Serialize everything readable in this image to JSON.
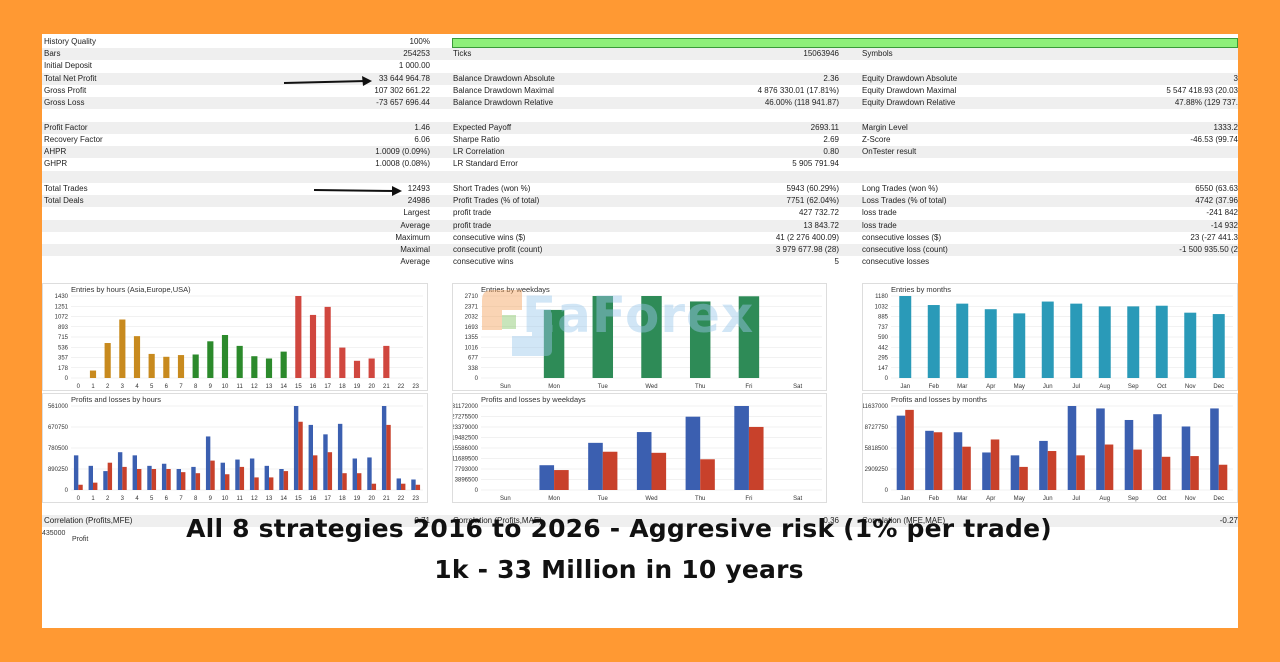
{
  "stats": {
    "history_quality_label": "History Quality",
    "history_quality_value": "100%",
    "rows": [
      {
        "l1": "Bars",
        "v1": "254253",
        "l2": "Ticks",
        "v2": "15063946",
        "l3": "Symbols",
        "v3": ""
      },
      {
        "l1": "Initial Deposit",
        "v1": "1 000.00",
        "l2": "",
        "v2": "",
        "l3": "",
        "v3": ""
      },
      {
        "l1": "Total Net Profit",
        "v1": "33 644 964.78",
        "l2": "Balance Drawdown Absolute",
        "v2": "2.36",
        "l3": "Equity Drawdown Absolute",
        "v3": "3"
      },
      {
        "l1": "Gross Profit",
        "v1": "107 302 661.22",
        "l2": "Balance Drawdown Maximal",
        "v2": "4 876 330.01 (17.81%)",
        "l3": "Equity Drawdown Maximal",
        "v3": "5 547 418.93 (20.03"
      },
      {
        "l1": "Gross Loss",
        "v1": "-73 657 696.44",
        "l2": "Balance Drawdown Relative",
        "v2": "46.00% (118 941.87)",
        "l3": "Equity Drawdown Relative",
        "v3": "47.88% (129 737."
      },
      {
        "l1": "",
        "v1": "",
        "l2": "",
        "v2": "",
        "l3": "",
        "v3": ""
      },
      {
        "l1": "Profit Factor",
        "v1": "1.46",
        "l2": "Expected Payoff",
        "v2": "2693.11",
        "l3": "Margin Level",
        "v3": "1333.2"
      },
      {
        "l1": "Recovery Factor",
        "v1": "6.06",
        "l2": "Sharpe Ratio",
        "v2": "2.69",
        "l3": "Z-Score",
        "v3": "-46.53 (99.74"
      },
      {
        "l1": "AHPR",
        "v1": "1.0009 (0.09%)",
        "l2": "LR Correlation",
        "v2": "0.80",
        "l3": "OnTester result",
        "v3": ""
      },
      {
        "l1": "GHPR",
        "v1": "1.0008 (0.08%)",
        "l2": "LR Standard Error",
        "v2": "5 905 791.94",
        "l3": "",
        "v3": ""
      },
      {
        "l1": "",
        "v1": "",
        "l2": "",
        "v2": "",
        "l3": "",
        "v3": ""
      },
      {
        "l1": "Total Trades",
        "v1": "12493",
        "l2": "Short Trades (won %)",
        "v2": "5943 (60.29%)",
        "l3": "Long Trades (won %)",
        "v3": "6550 (63.63"
      },
      {
        "l1": "Total Deals",
        "v1": "24986",
        "l2": "Profit Trades (% of total)",
        "v2": "7751 (62.04%)",
        "l3": "Loss Trades (% of total)",
        "v3": "4742 (37.96"
      },
      {
        "l1": "",
        "v1": "Largest",
        "l2": "profit trade",
        "v2": "427 732.72",
        "l3": "loss trade",
        "v3": "-241 842"
      },
      {
        "l1": "",
        "v1": "Average",
        "l2": "profit trade",
        "v2": "13 843.72",
        "l3": "loss trade",
        "v3": "-14 932"
      },
      {
        "l1": "",
        "v1": "Maximum",
        "l2": "consecutive wins ($)",
        "v2": "41 (2 276 400.09)",
        "l3": "consecutive losses ($)",
        "v3": "23 (-27 441.3"
      },
      {
        "l1": "",
        "v1": "Maximal",
        "l2": "consecutive profit (count)",
        "v2": "3 979 677.98 (28)",
        "l3": "consecutive loss (count)",
        "v3": "-1 500 935.50 (2"
      },
      {
        "l1": "",
        "v1": "Average",
        "l2": "consecutive wins",
        "v2": "5",
        "l3": "consecutive losses",
        "v3": ""
      }
    ]
  },
  "chart_data": [
    {
      "type": "bar",
      "title": "Entries by hours (Asia,Europe,USA)",
      "categories": [
        "0",
        "1",
        "2",
        "3",
        "4",
        "5",
        "6",
        "7",
        "8",
        "9",
        "10",
        "11",
        "12",
        "13",
        "14",
        "15",
        "16",
        "17",
        "18",
        "19",
        "20",
        "21",
        "22",
        "23"
      ],
      "y_ticks": [
        "1430",
        "1251",
        "1072",
        "893",
        "715",
        "536",
        "357",
        "178",
        "0"
      ],
      "ylim": [
        0,
        1430
      ],
      "values": [
        0,
        130,
        610,
        1020,
        730,
        420,
        370,
        400,
        410,
        640,
        750,
        560,
        380,
        340,
        460,
        1430,
        1100,
        1240,
        530,
        300,
        340,
        560,
        0,
        0
      ],
      "colors": [
        "#c88a1e",
        "#c88a1e",
        "#c88a1e",
        "#c88a1e",
        "#c88a1e",
        "#c88a1e",
        "#c88a1e",
        "#c88a1e",
        "#2c8a2c",
        "#2c8a2c",
        "#2c8a2c",
        "#2c8a2c",
        "#2c8a2c",
        "#2c8a2c",
        "#2c8a2c",
        "#d0473f",
        "#d0473f",
        "#d0473f",
        "#d0473f",
        "#d0473f",
        "#d0473f",
        "#d0473f",
        "#d0473f",
        "#d0473f"
      ]
    },
    {
      "type": "bar",
      "title": "Entries by weekdays",
      "categories": [
        "Sun",
        "Mon",
        "Tue",
        "Wed",
        "Thu",
        "Fri",
        "Sat"
      ],
      "y_ticks": [
        "2710",
        "2371",
        "2032",
        "1693",
        "1355",
        "1016",
        "677",
        "338",
        "0"
      ],
      "ylim": [
        0,
        2710
      ],
      "values": [
        0,
        2250,
        2710,
        2710,
        2530,
        2700,
        0
      ],
      "colors": [
        "#2e8b57"
      ]
    },
    {
      "type": "bar",
      "title": "Entries by months",
      "categories": [
        "Jan",
        "Feb",
        "Mar",
        "Apr",
        "May",
        "Jun",
        "Jul",
        "Aug",
        "Sep",
        "Oct",
        "Nov",
        "Dec"
      ],
      "y_ticks": [
        "1180",
        "1032",
        "885",
        "737",
        "590",
        "442",
        "295",
        "147",
        "0"
      ],
      "ylim": [
        0,
        1180
      ],
      "values": [
        1180,
        1050,
        1070,
        990,
        930,
        1100,
        1070,
        1030,
        1030,
        1040,
        940,
        920
      ],
      "colors": [
        "#2a9ab8"
      ]
    },
    {
      "type": "bar",
      "title": "Profits and losses by hours",
      "categories": [
        "0",
        "1",
        "2",
        "3",
        "4",
        "5",
        "6",
        "7",
        "8",
        "9",
        "10",
        "11",
        "12",
        "13",
        "14",
        "15",
        "16",
        "17",
        "18",
        "19",
        "20",
        "21",
        "22",
        "23"
      ],
      "y_ticks": [
        "561000",
        "670750",
        "780500",
        "890250",
        "0"
      ],
      "ylim": [
        0,
        8000000
      ],
      "series": [
        {
          "name": "profit",
          "color": "#3b5fb0",
          "values": [
            3300000,
            2300000,
            1800000,
            3600000,
            3300000,
            2300000,
            2500000,
            2000000,
            2200000,
            5100000,
            2600000,
            2900000,
            3000000,
            2300000,
            2000000,
            8000000,
            6200000,
            5300000,
            6300000,
            3000000,
            3100000,
            8000000,
            1100000,
            1000000
          ]
        },
        {
          "name": "loss",
          "color": "#c8412b",
          "values": [
            500000,
            700000,
            2600000,
            2200000,
            2000000,
            2000000,
            2000000,
            1700000,
            1600000,
            2800000,
            1500000,
            2200000,
            1200000,
            1200000,
            1800000,
            6500000,
            3300000,
            3600000,
            1600000,
            1600000,
            600000,
            6200000,
            600000,
            500000
          ]
        }
      ]
    },
    {
      "type": "bar",
      "title": "Profits and losses by weekdays",
      "categories": [
        "Sun",
        "Mon",
        "Tue",
        "Wed",
        "Thu",
        "Fri",
        "Sat"
      ],
      "y_ticks": [
        "31172000",
        "27275500",
        "23379000",
        "19482500",
        "15586000",
        "11689500",
        "7793000",
        "3896500",
        "0"
      ],
      "ylim": [
        0,
        31172000
      ],
      "series": [
        {
          "name": "profit",
          "color": "#3b5fb0",
          "values": [
            0,
            9200000,
            17500000,
            21500000,
            27200000,
            31172000,
            0
          ]
        },
        {
          "name": "loss",
          "color": "#c8412b",
          "values": [
            0,
            7400000,
            14200000,
            13800000,
            11400000,
            23400000,
            0
          ]
        }
      ]
    },
    {
      "type": "bar",
      "title": "Profits and losses by months",
      "categories": [
        "Jan",
        "Feb",
        "Mar",
        "Apr",
        "May",
        "Jun",
        "Jul",
        "Aug",
        "Sep",
        "Oct",
        "Nov",
        "Dec"
      ],
      "y_ticks": [
        "11637000",
        "8727750",
        "5818500",
        "2909250",
        "0"
      ],
      "ylim": [
        0,
        11637000
      ],
      "series": [
        {
          "name": "profit",
          "color": "#3b5fb0",
          "values": [
            10300000,
            8200000,
            8000000,
            5200000,
            4800000,
            6800000,
            11637000,
            11300000,
            9700000,
            10500000,
            8800000,
            11300000
          ]
        },
        {
          "name": "loss",
          "color": "#c8412b",
          "values": [
            11100000,
            8000000,
            6000000,
            7000000,
            3200000,
            5400000,
            4800000,
            6300000,
            5600000,
            4600000,
            4700000,
            3500000
          ]
        }
      ]
    }
  ],
  "correlation": {
    "l1": "Correlation (Profits,MFE)",
    "v1": "0.71",
    "l2": "Correlation (Profits,MAE)",
    "v2": "0.36",
    "l3": "Correlation (MFE,MAE)",
    "v3": "-0.27"
  },
  "bottom_axis": [
    "435000",
    "348000",
    "261000",
    "174000",
    "87000",
    "0",
    "-87000",
    "-174000"
  ],
  "bottom_label": "Profit",
  "watermark": "EaForex",
  "caption": {
    "line1": "All 8 strategies 2016 to 2026 - Aggresive risk (1% per trade)",
    "line2": "1k - 33 Million in 10 years"
  },
  "colors": {
    "frame": "#FF9933",
    "quality_bar": "#8ef07a"
  }
}
